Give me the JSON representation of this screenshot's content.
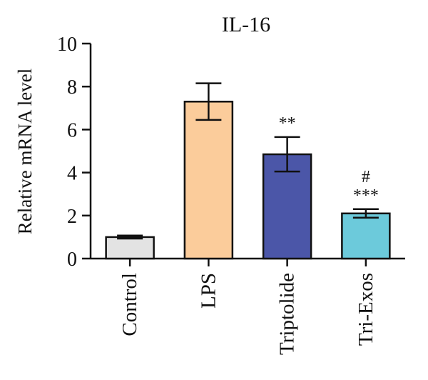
{
  "chart_data": {
    "type": "bar",
    "title": "IL-16",
    "xlabel": "",
    "ylabel": "Relative mRNA level",
    "ylim": [
      0,
      10
    ],
    "yticks": [
      "0",
      "2",
      "4",
      "6",
      "8",
      "10"
    ],
    "grid": false,
    "legend": "none",
    "categories": [
      "Control",
      "LPS",
      "Triptolide",
      "Tri-Exos"
    ],
    "values": [
      1.0,
      7.3,
      4.85,
      2.1
    ],
    "errors": [
      0.07,
      0.85,
      0.8,
      0.2
    ],
    "colors": [
      "#e3e3e3",
      "#fbcc9b",
      "#4b56a8",
      "#6ccadb"
    ],
    "annotations": [
      {
        "category": "Triptolide",
        "lines": [
          "**"
        ]
      },
      {
        "category": "Tri-Exos",
        "lines": [
          "#",
          "***"
        ]
      }
    ]
  }
}
